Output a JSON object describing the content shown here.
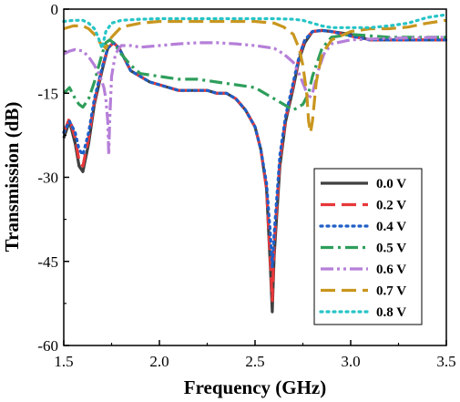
{
  "chart_data": {
    "type": "line",
    "xlabel": "Frequency (GHz)",
    "ylabel": "Transmission (dB)",
    "xlim": [
      1.5,
      3.5
    ],
    "ylim": [
      -60,
      0
    ],
    "xticks": [
      1.5,
      2.0,
      2.5,
      3.0,
      3.5
    ],
    "xtick_labels": [
      "1.5",
      "2.0",
      "2.5",
      "3.0",
      "3.5"
    ],
    "yticks": [
      0,
      -15,
      -30,
      -45,
      -60
    ],
    "ytick_labels": [
      "0",
      "-15",
      "-30",
      "-45",
      "-60"
    ],
    "grid": false,
    "legend_position": "bottom-right",
    "series": [
      {
        "name": "0.0 V",
        "color": "#404040",
        "dash": "solid",
        "x": [
          1.5,
          1.53,
          1.56,
          1.58,
          1.6,
          1.63,
          1.66,
          1.7,
          1.73,
          1.76,
          1.79,
          1.82,
          1.85,
          1.9,
          1.95,
          2.0,
          2.05,
          2.1,
          2.15,
          2.2,
          2.25,
          2.3,
          2.35,
          2.4,
          2.45,
          2.5,
          2.53,
          2.56,
          2.58,
          2.59,
          2.6,
          2.63,
          2.66,
          2.7,
          2.73,
          2.76,
          2.8,
          2.85,
          2.9,
          3.0,
          3.1,
          3.2,
          3.3,
          3.4,
          3.5
        ],
        "y": [
          -23,
          -20,
          -24,
          -28,
          -29,
          -24,
          -17,
          -11,
          -7,
          -6,
          -7,
          -9,
          -11,
          -12,
          -13,
          -13.5,
          -14,
          -14.5,
          -14.5,
          -14.5,
          -14.5,
          -15,
          -15,
          -16,
          -18,
          -21,
          -25,
          -32,
          -46,
          -54,
          -44,
          -28,
          -20,
          -14,
          -9,
          -6,
          -4,
          -3.8,
          -4,
          -4.5,
          -5.5,
          -5.5,
          -5.5,
          -5.5,
          -5.5
        ]
      },
      {
        "name": "0.2 V",
        "color": "#e8383a",
        "dash": "dashed",
        "x": [
          1.5,
          1.53,
          1.56,
          1.58,
          1.6,
          1.63,
          1.66,
          1.7,
          1.73,
          1.76,
          1.79,
          1.82,
          1.85,
          1.9,
          1.95,
          2.0,
          2.05,
          2.1,
          2.15,
          2.2,
          2.25,
          2.3,
          2.35,
          2.4,
          2.45,
          2.5,
          2.53,
          2.56,
          2.58,
          2.59,
          2.6,
          2.63,
          2.66,
          2.7,
          2.73,
          2.76,
          2.8,
          2.85,
          2.9,
          3.0,
          3.1,
          3.2,
          3.3,
          3.4,
          3.5
        ],
        "y": [
          -22,
          -19.5,
          -23,
          -27,
          -28,
          -23,
          -16.5,
          -10.5,
          -7,
          -6,
          -7,
          -9,
          -11,
          -12,
          -13,
          -13.5,
          -14,
          -14.5,
          -14.5,
          -14.5,
          -14.5,
          -15,
          -15,
          -16,
          -18,
          -21,
          -25,
          -32,
          -45,
          -52,
          -42,
          -27,
          -19.5,
          -13.5,
          -8.5,
          -5.5,
          -4,
          -3.8,
          -4,
          -4.8,
          -5.5,
          -5.5,
          -5.5,
          -5.5,
          -5.5
        ]
      },
      {
        "name": "0.4 V",
        "color": "#1f5fc8",
        "dash": "dotted",
        "x": [
          1.5,
          1.53,
          1.56,
          1.58,
          1.6,
          1.63,
          1.66,
          1.7,
          1.73,
          1.76,
          1.79,
          1.82,
          1.85,
          1.9,
          1.95,
          2.0,
          2.05,
          2.1,
          2.15,
          2.2,
          2.25,
          2.3,
          2.35,
          2.4,
          2.45,
          2.5,
          2.53,
          2.56,
          2.58,
          2.59,
          2.6,
          2.63,
          2.66,
          2.7,
          2.73,
          2.76,
          2.8,
          2.85,
          2.9,
          3.0,
          3.1,
          3.2,
          3.3,
          3.4,
          3.5
        ],
        "y": [
          -22,
          -20,
          -22,
          -25,
          -26,
          -22,
          -16,
          -10.5,
          -7,
          -6,
          -7,
          -9,
          -11,
          -12,
          -13,
          -13.5,
          -14,
          -14.5,
          -14.5,
          -14.5,
          -14.5,
          -15,
          -15,
          -16,
          -18,
          -21,
          -25,
          -31,
          -40,
          -46,
          -40,
          -26,
          -19,
          -13,
          -8.5,
          -5.5,
          -4,
          -3.8,
          -4,
          -4.8,
          -5.5,
          -5.5,
          -5.5,
          -5.5,
          -5.5
        ]
      },
      {
        "name": "0.5 V",
        "color": "#2e9e5b",
        "dash": "dashdot",
        "x": [
          1.5,
          1.53,
          1.56,
          1.58,
          1.6,
          1.63,
          1.66,
          1.7,
          1.72,
          1.74,
          1.76,
          1.8,
          1.85,
          1.9,
          2.0,
          2.1,
          2.2,
          2.3,
          2.4,
          2.5,
          2.55,
          2.6,
          2.65,
          2.7,
          2.75,
          2.78,
          2.8,
          2.85,
          2.9,
          3.0,
          3.2,
          3.5
        ],
        "y": [
          -15,
          -14,
          -16,
          -17,
          -17.5,
          -16,
          -13,
          -8,
          -6,
          -5.5,
          -6,
          -8,
          -10,
          -11.5,
          -12,
          -12.5,
          -12.5,
          -13,
          -13.5,
          -14,
          -15,
          -16,
          -17,
          -18,
          -17,
          -15,
          -12,
          -7,
          -5,
          -4.5,
          -5,
          -5
        ]
      },
      {
        "name": "0.6 V",
        "color": "#b57fd8",
        "dash": "dashdotdot",
        "x": [
          1.5,
          1.53,
          1.56,
          1.6,
          1.63,
          1.66,
          1.69,
          1.71,
          1.72,
          1.73,
          1.735,
          1.74,
          1.75,
          1.77,
          1.8,
          1.85,
          1.9,
          2.0,
          2.1,
          2.2,
          2.3,
          2.4,
          2.5,
          2.6,
          2.65,
          2.7,
          2.73,
          2.76,
          2.78,
          2.8,
          2.83,
          2.86,
          2.9,
          3.0,
          3.2,
          3.5
        ],
        "y": [
          -8,
          -7.5,
          -7.2,
          -7.5,
          -8.5,
          -10,
          -12,
          -14,
          -16,
          -20,
          -26,
          -20,
          -12,
          -8,
          -6.5,
          -6.5,
          -6.8,
          -6.5,
          -6.2,
          -6,
          -6,
          -6.2,
          -6.5,
          -7,
          -8,
          -9.5,
          -11.5,
          -14,
          -16,
          -15,
          -11,
          -8,
          -6.2,
          -5.5,
          -5.2,
          -5
        ]
      },
      {
        "name": "0.7 V",
        "color": "#c9961e",
        "dash": "dashed",
        "x": [
          1.5,
          1.55,
          1.6,
          1.63,
          1.66,
          1.69,
          1.72,
          1.75,
          1.8,
          1.9,
          2.0,
          2.1,
          2.2,
          2.3,
          2.4,
          2.5,
          2.6,
          2.65,
          2.7,
          2.73,
          2.75,
          2.77,
          2.78,
          2.79,
          2.8,
          2.82,
          2.85,
          2.9,
          3.0,
          3.1,
          3.2,
          3.3,
          3.4,
          3.5
        ],
        "y": [
          -3.5,
          -3,
          -3,
          -3.5,
          -4.5,
          -6,
          -7,
          -5,
          -3.2,
          -2.5,
          -2.2,
          -2.2,
          -2.2,
          -2.2,
          -2.2,
          -2.2,
          -2.5,
          -3.2,
          -4.5,
          -7,
          -10,
          -15,
          -20,
          -22,
          -20,
          -13,
          -8,
          -5.5,
          -4,
          -3.5,
          -3.5,
          -3.2,
          -2.5,
          -2
        ]
      },
      {
        "name": "0.8 V",
        "color": "#27c4c6",
        "dash": "dotted",
        "x": [
          1.5,
          1.55,
          1.6,
          1.63,
          1.66,
          1.68,
          1.7,
          1.72,
          1.75,
          1.8,
          1.9,
          2.0,
          2.1,
          2.2,
          2.3,
          2.4,
          2.5,
          2.6,
          2.7,
          2.75,
          2.8,
          2.85,
          2.9,
          3.0,
          3.1,
          3.2,
          3.3,
          3.4,
          3.5
        ],
        "y": [
          -2.2,
          -2,
          -2,
          -2.5,
          -3.5,
          -5,
          -7,
          -4,
          -2.5,
          -2,
          -1.8,
          -1.7,
          -1.7,
          -1.7,
          -1.7,
          -1.7,
          -1.7,
          -1.7,
          -1.8,
          -2,
          -2.5,
          -3,
          -3.3,
          -3.3,
          -3.3,
          -3,
          -2.5,
          -1.5,
          -1
        ]
      }
    ]
  }
}
